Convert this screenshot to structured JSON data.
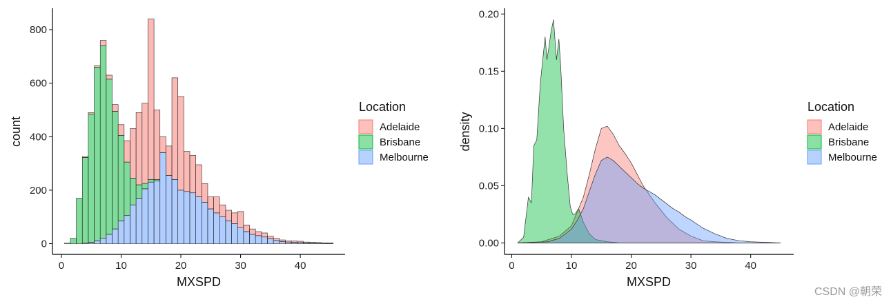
{
  "colors": {
    "adelaide": "#F8766D",
    "brisbane": "#00BA38",
    "melbourne": "#619CFF"
  },
  "watermark": "CSDN @朝荣",
  "chart_data": [
    {
      "type": "bar",
      "stacked": true,
      "xlabel": "MXSPD",
      "ylabel": "count",
      "xlim": [
        -1.5,
        47.5
      ],
      "ylim": [
        -40,
        880
      ],
      "xticks": [
        0,
        10,
        20,
        30,
        40
      ],
      "yticks": [
        0,
        200,
        400,
        600,
        800
      ],
      "bin_start": 0.5,
      "bin_width": 1,
      "categories": [
        1,
        2,
        3,
        4,
        5,
        6,
        7,
        8,
        9,
        10,
        11,
        12,
        13,
        14,
        15,
        16,
        17,
        18,
        19,
        20,
        21,
        22,
        23,
        24,
        25,
        26,
        27,
        28,
        29,
        30,
        31,
        32,
        33,
        34,
        35,
        36,
        37,
        38,
        39,
        40,
        41,
        42,
        43,
        44,
        45
      ],
      "legend_title": "Location",
      "series": [
        {
          "name": "Melbourne",
          "values": [
            0,
            0,
            0,
            2,
            5,
            10,
            20,
            35,
            55,
            85,
            105,
            145,
            170,
            205,
            230,
            235,
            340,
            255,
            240,
            200,
            195,
            190,
            175,
            155,
            130,
            115,
            100,
            85,
            75,
            60,
            45,
            35,
            30,
            25,
            18,
            12,
            8,
            6,
            5,
            4,
            3,
            2,
            2,
            1,
            1
          ]
        },
        {
          "name": "Brisbane",
          "values": [
            2,
            20,
            170,
            320,
            480,
            650,
            720,
            580,
            440,
            320,
            200,
            100,
            50,
            20,
            10,
            5,
            0,
            0,
            0,
            0,
            0,
            0,
            0,
            0,
            0,
            0,
            0,
            0,
            0,
            0,
            0,
            0,
            0,
            0,
            0,
            0,
            0,
            0,
            0,
            0,
            0,
            0,
            0,
            0,
            0
          ]
        },
        {
          "name": "Adelaide",
          "values": [
            0,
            0,
            0,
            3,
            5,
            5,
            20,
            15,
            25,
            40,
            80,
            185,
            270,
            300,
            600,
            260,
            60,
            110,
            380,
            350,
            150,
            140,
            120,
            70,
            45,
            60,
            45,
            40,
            40,
            60,
            25,
            20,
            15,
            15,
            10,
            8,
            6,
            4,
            5,
            5,
            3,
            3,
            2,
            2,
            2
          ]
        }
      ]
    },
    {
      "type": "area",
      "xlabel": "MXSPD",
      "ylabel": "density",
      "xlim": [
        -1.2,
        47.2
      ],
      "ylim": [
        -0.01,
        0.205
      ],
      "xticks": [
        0,
        10,
        20,
        30,
        40
      ],
      "yticks": [
        0.0,
        0.05,
        0.1,
        0.15,
        0.2
      ],
      "ytick_labels": [
        "0.00",
        "0.05",
        "0.10",
        "0.15",
        "0.20"
      ],
      "legend_title": "Location",
      "series": [
        {
          "name": "Adelaide",
          "x": [
            1,
            5,
            8,
            10,
            12,
            13,
            14,
            15,
            16,
            17,
            18,
            19,
            20,
            22,
            24,
            26,
            28,
            30,
            32,
            34,
            36,
            38,
            40,
            42,
            45
          ],
          "y": [
            0,
            0.001,
            0.006,
            0.015,
            0.04,
            0.06,
            0.082,
            0.1,
            0.102,
            0.095,
            0.085,
            0.078,
            0.07,
            0.05,
            0.035,
            0.022,
            0.012,
            0.006,
            0.002,
            0.001,
            0.0005,
            0,
            0,
            0,
            0
          ]
        },
        {
          "name": "Brisbane",
          "x": [
            1,
            2,
            2.8,
            3.3,
            3.7,
            4.2,
            4.8,
            5.2,
            5.6,
            5.9,
            6.2,
            6.6,
            7.0,
            7.5,
            7.9,
            8.2,
            8.7,
            9.3,
            9.8,
            10.2,
            10.6,
            11.2,
            12,
            13,
            14,
            16,
            18,
            20,
            45
          ],
          "y": [
            0,
            0.005,
            0.04,
            0.035,
            0.085,
            0.09,
            0.14,
            0.16,
            0.18,
            0.16,
            0.17,
            0.185,
            0.195,
            0.16,
            0.178,
            0.155,
            0.1,
            0.06,
            0.032,
            0.025,
            0.025,
            0.03,
            0.018,
            0.008,
            0.003,
            0.001,
            0,
            0,
            0
          ]
        },
        {
          "name": "Melbourne",
          "x": [
            1,
            6,
            8,
            10,
            11,
            12,
            13,
            14,
            15,
            16,
            17,
            18,
            19,
            20,
            21,
            22,
            23,
            24,
            25,
            26,
            27,
            28,
            29,
            30,
            32,
            34,
            36,
            38,
            40,
            45
          ],
          "y": [
            0,
            0.001,
            0.004,
            0.012,
            0.02,
            0.03,
            0.045,
            0.06,
            0.072,
            0.075,
            0.072,
            0.067,
            0.062,
            0.057,
            0.052,
            0.048,
            0.045,
            0.042,
            0.038,
            0.034,
            0.03,
            0.027,
            0.023,
            0.02,
            0.013,
            0.008,
            0.004,
            0.002,
            0.001,
            0
          ]
        }
      ]
    }
  ]
}
